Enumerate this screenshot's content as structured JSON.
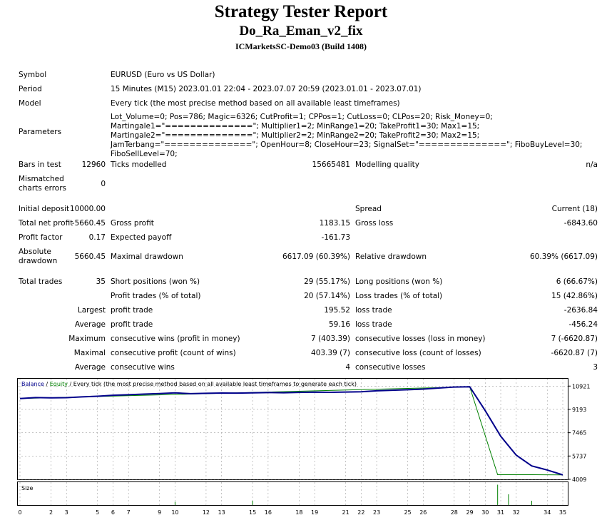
{
  "header": {
    "title": "Strategy Tester Report",
    "expert": "Do_Ra_Eman_v2_fix",
    "server": "ICMarketsSC-Demo03 (Build 1408)"
  },
  "info": {
    "symbol_label": "Symbol",
    "symbol": "EURUSD (Euro vs US Dollar)",
    "period_label": "Period",
    "period": "15 Minutes (M15) 2023.01.01 22:04 - 2023.07.07 20:59 (2023.01.01 - 2023.07.01)",
    "model_label": "Model",
    "model": "Every tick (the most precise method based on all available least timeframes)",
    "parameters_label": "Parameters",
    "parameters": "Lot_Volume=0; Pos=786; Magic=6326; CutProfit=1; CPPos=1; CutLoss=0; CLPos=20; Risk_Money=0; Martingale1=\"==============\"; Multiplier1=2; MinRange1=20; TakeProfit1=30; Max1=15; Martingale2=\"==============\"; Multiplier2=2; MinRange2=20; TakeProfit2=30; Max2=15; JamTerbang=\"==============\"; OpenHour=8; CloseHour=23; SignalSet=\"==============\"; FiboBuyLevel=30; FiboSellLevel=70;"
  },
  "stats": {
    "bars_label": "Bars in test",
    "bars": "12960",
    "ticks_label": "Ticks modelled",
    "ticks": "15665481",
    "quality_label": "Modelling quality",
    "quality": "n/a",
    "mismatch_label_1": "Mismatched",
    "mismatch_label_2": "charts errors",
    "mismatch": "0",
    "deposit_label": "Initial deposit",
    "deposit": "10000.00",
    "spread_label": "Spread",
    "spread": "Current (18)",
    "net_label": "Total net profit",
    "net": "-5660.45",
    "gross_profit_label": "Gross profit",
    "gross_profit": "1183.15",
    "gross_loss_label": "Gross loss",
    "gross_loss": "-6843.60",
    "pf_label": "Profit factor",
    "pf": "0.17",
    "payoff_label": "Expected payoff",
    "payoff": "-161.73",
    "abs_dd_label_1": "Absolute",
    "abs_dd_label_2": "drawdown",
    "abs_dd": "5660.45",
    "max_dd_label": "Maximal drawdown",
    "max_dd": "6617.09 (60.39%)",
    "rel_dd_label": "Relative drawdown",
    "rel_dd": "60.39% (6617.09)",
    "trades_label": "Total trades",
    "trades": "35",
    "short_label": "Short positions (won %)",
    "short": "29 (55.17%)",
    "long_label": "Long positions (won %)",
    "long": "6 (66.67%)",
    "pt_label": "Profit trades (% of total)",
    "pt": "20 (57.14%)",
    "lt_label": "Loss trades (% of total)",
    "lt": "15 (42.86%)",
    "largest_label": "Largest",
    "largest_pt_label": "profit trade",
    "largest_pt": "195.52",
    "largest_lt_label": "loss trade",
    "largest_lt": "-2636.84",
    "average_label": "Average",
    "average_pt_label": "profit trade",
    "average_pt": "59.16",
    "average_lt_label": "loss trade",
    "average_lt": "-456.24",
    "maximum_label": "Maximum",
    "max_wins_label": "consecutive wins (profit in money)",
    "max_wins": "7 (403.39)",
    "max_losses_label": "consecutive losses (loss in money)",
    "max_losses": "7 (-6620.87)",
    "maximal_label": "Maximal",
    "maximal_profit_label": "consecutive profit (count of wins)",
    "maximal_profit": "403.39 (7)",
    "maximal_loss_label": "consecutive loss (count of losses)",
    "maximal_loss": "-6620.87 (7)",
    "avg_label": "Average",
    "avg_wins_label": "consecutive wins",
    "avg_wins": "4",
    "avg_losses_label": "consecutive losses",
    "avg_losses": "3"
  },
  "chart_legend": {
    "balance": "Balance",
    "sep1": " / ",
    "equity": "Equity",
    "rest": " / Every tick (the most precise method based on all available least timeframes to generate each tick)",
    "size_label": "Size"
  },
  "colors": {
    "balance": "#00008b",
    "equity": "#008000",
    "grid": "#a0a0a0",
    "size": "#008000"
  },
  "chart_data": {
    "type": "line",
    "ylim": [
      4009,
      11200
    ],
    "y_ticks": [
      10921,
      9193,
      7465,
      5737,
      4009
    ],
    "x_ticks": [
      0,
      2,
      3,
      5,
      6,
      7,
      9,
      10,
      12,
      13,
      15,
      16,
      18,
      19,
      21,
      22,
      23,
      25,
      26,
      28,
      29,
      30,
      31,
      32,
      34,
      35
    ],
    "series": [
      {
        "name": "Balance",
        "x": [
          0,
          1,
          2,
          3,
          4,
          5,
          6,
          7,
          8,
          9,
          10,
          11,
          12,
          13,
          14,
          15,
          16,
          17,
          18,
          19,
          20,
          21,
          22,
          23,
          24,
          25,
          26,
          27,
          28,
          29,
          30,
          31,
          32,
          33,
          34,
          35
        ],
        "values": [
          10000,
          10070,
          10050,
          10060,
          10120,
          10170,
          10240,
          10280,
          10330,
          10370,
          10420,
          10360,
          10390,
          10410,
          10400,
          10420,
          10440,
          10430,
          10450,
          10470,
          10460,
          10480,
          10500,
          10570,
          10610,
          10650,
          10700,
          10780,
          10850,
          10870,
          9100,
          7200,
          5800,
          5000,
          4700,
          4340
        ]
      },
      {
        "name": "Equity",
        "x": [
          0,
          29,
          30.8,
          33,
          35
        ],
        "values": [
          10000,
          10870,
          4350,
          4350,
          4340
        ]
      }
    ],
    "size_series": {
      "x": [
        10,
        15,
        30.8,
        31.5,
        33
      ],
      "values": [
        0.15,
        0.2,
        0.95,
        0.5,
        0.2
      ]
    }
  }
}
